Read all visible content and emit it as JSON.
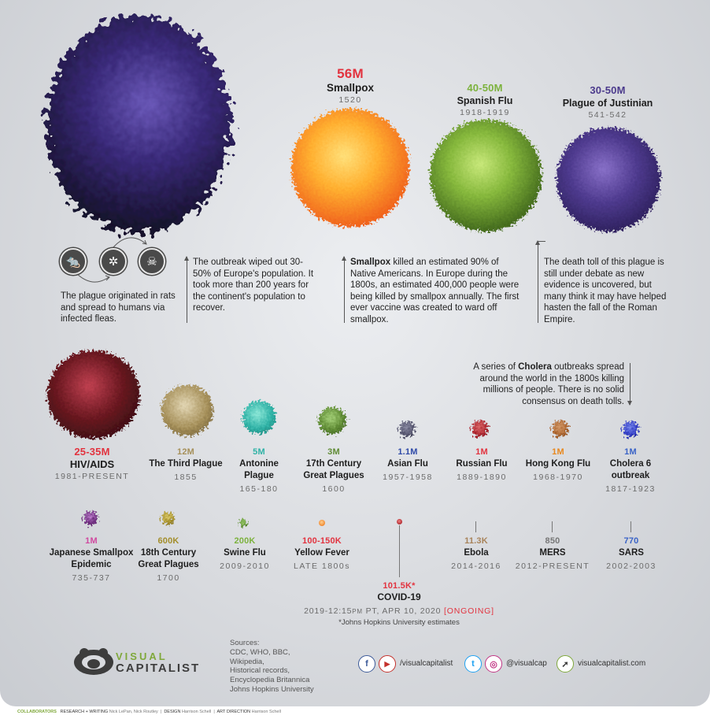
{
  "colors": {
    "red": "#e2333f",
    "green": "#7cb23d",
    "purple": "#4b3a8c",
    "tan": "#a6905a",
    "teal": "#2fb2a6",
    "darkgreen": "#5f8b34",
    "blue": "#3a63c7",
    "orange": "#e8881e",
    "pink": "#d04aa0",
    "olive": "#a38d2a",
    "brown": "#a8835a"
  },
  "top": {
    "smallpox": {
      "value": "56M",
      "name": "Smallpox",
      "years": "1520"
    },
    "spanish_flu": {
      "value": "40-50M",
      "name": "Spanish Flu",
      "years": "1918-1919"
    },
    "justinian": {
      "value": "30-50M",
      "name": "Plague of Justinian",
      "years": "541-542"
    }
  },
  "notes": {
    "plague_origin": "The plague originated in rats and spread to humans via infected fleas.",
    "black_death": "The outbreak wiped out 30-50% of Europe's population. It took more than 200 years for the continent's population to recover.",
    "smallpox_bold": "Smallpox",
    "smallpox_rest": " killed an estimated 90% of Native Americans. In Europe during the 1800s, an estimated 400,000 people were being killed by smallpox annually. The first ever vaccine was created to ward off smallpox.",
    "justinian": "The death toll of this plague is still under debate as new evidence is uncovered, but many think it may have helped hasten the fall of the Roman Empire.",
    "cholera_pre": "A series of ",
    "cholera_bold": "Cholera",
    "cholera_post": " outbreaks spread around the world in the 1800s killing millions of people. There is no solid consensus on death tolls."
  },
  "row2": [
    {
      "value": "25-35M",
      "name": "HIV/AIDS",
      "years": "1981-PRESENT",
      "color": "#e2333f"
    },
    {
      "value": "12M",
      "name": "The Third Plague",
      "years": "1855",
      "color": "#a6905a"
    },
    {
      "value": "5M",
      "name": "Antonine Plague",
      "years": "165-180",
      "color": "#2fb2a6"
    },
    {
      "value": "3M",
      "name": "17th Century Great Plagues",
      "years": "1600",
      "color": "#5f8b34"
    },
    {
      "value": "1.1M",
      "name": "Asian Flu",
      "years": "1957-1958",
      "color": "#2f4aa8"
    },
    {
      "value": "1M",
      "name": "Russian Flu",
      "years": "1889-1890",
      "color": "#e2333f"
    },
    {
      "value": "1M",
      "name": "Hong Kong Flu",
      "years": "1968-1970",
      "color": "#e8881e"
    },
    {
      "value": "1M",
      "name": "Cholera 6 outbreak",
      "years": "1817-1923",
      "color": "#3a63c7"
    }
  ],
  "row3": [
    {
      "value": "1M",
      "name": "Japanese Smallpox Epidemic",
      "years": "735-737",
      "color": "#d04aa0"
    },
    {
      "value": "600K",
      "name": "18th Century Great Plagues",
      "years": "1700",
      "color": "#a38d2a"
    },
    {
      "value": "200K",
      "name": "Swine Flu",
      "years": "2009-2010",
      "color": "#7cb23d"
    },
    {
      "value": "100-150K",
      "name": "Yellow Fever",
      "years": "LATE 1800s",
      "color": "#e2333f"
    },
    {
      "value": "11.3K",
      "name": "Ebola",
      "years": "2014-2016",
      "color": "#a8835a"
    },
    {
      "value": "850",
      "name": "MERS",
      "years": "2012-PRESENT",
      "color": "#777777"
    },
    {
      "value": "770",
      "name": "SARS",
      "years": "2002-2003",
      "color": "#3a63c7"
    }
  ],
  "covid": {
    "value": "101.5K*",
    "name": "COVID-19",
    "years_prefix": "2019-12:15",
    "pm": "PM",
    "years_mid": " PT, APR 10, 2020 ",
    "ongoing": "[ONGOING]",
    "footnote": "*Johns Hopkins University estimates"
  },
  "logo": {
    "line1": "VISUAL",
    "line2": "CAPITALIST"
  },
  "sources": {
    "title": "Sources:",
    "lines": [
      "CDC, WHO, BBC,",
      "Wikipedia,",
      "Historical records,",
      "Encyclopedia Britannica",
      "Johns Hopkins University"
    ]
  },
  "social": {
    "facebook_icon": "f",
    "youtube_icon": "▶",
    "handle1": "/visualcapitalist",
    "twitter_icon": "t",
    "instagram_icon": "◎",
    "handle2": "@visualcap",
    "cursor_icon": "➚",
    "site": "visualcapitalist.com"
  },
  "credits": {
    "collab": "COLLABORATORS",
    "r_label": "RESEARCH + WRITING",
    "r_names": "Nick LePan, Nick Routley",
    "d_label": "DESIGN",
    "d_names": "Harrison Schell",
    "a_label": "ART DIRECTION",
    "a_names": "Harrison Schell",
    "sep": "|"
  }
}
